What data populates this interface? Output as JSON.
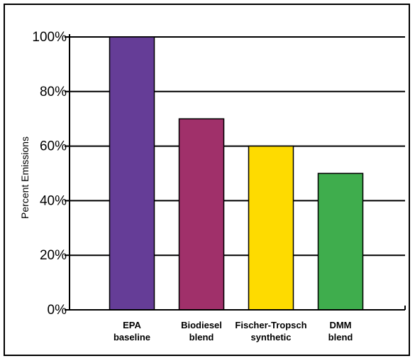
{
  "chart_data": {
    "type": "bar",
    "title": "",
    "xlabel": "",
    "ylabel": "Percent Emissions",
    "ylim": [
      0,
      100
    ],
    "yticks": [
      0,
      20,
      40,
      60,
      80,
      100
    ],
    "ytick_labels": [
      "0%",
      "20%",
      "40%",
      "60%",
      "80%",
      "100%"
    ],
    "categories": [
      [
        "EPA",
        "baseline"
      ],
      [
        "Biodiesel",
        "blend"
      ],
      [
        "Fischer-Tropsch",
        "synthetic"
      ],
      [
        "DMM",
        "blend"
      ]
    ],
    "values": [
      100,
      70,
      60,
      50
    ],
    "colors": [
      "#653d97",
      "#a0306a",
      "#fedb00",
      "#3fad4d"
    ],
    "grid": "horizontal",
    "legend": "none"
  }
}
